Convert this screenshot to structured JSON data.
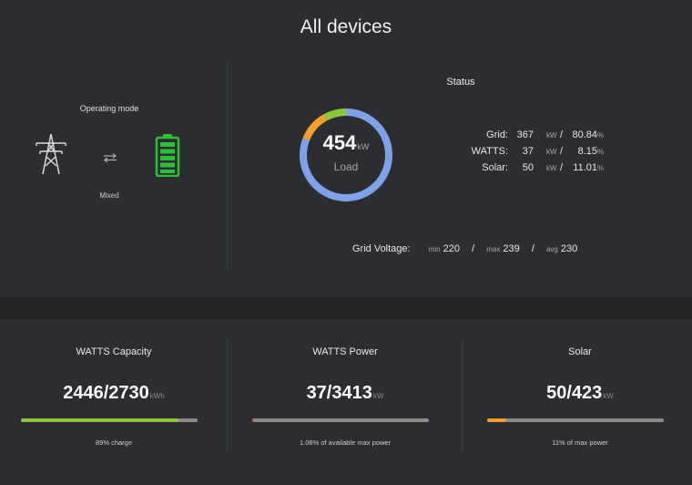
{
  "page": {
    "title": "All devices"
  },
  "operating_mode": {
    "label": "Operating mode",
    "value": "Mixed",
    "arrows_glyph": "⇆",
    "icons": [
      "power-tower-icon",
      "swap-arrows-icon",
      "battery-full-icon"
    ]
  },
  "status": {
    "title": "Status",
    "load_value": "454",
    "load_unit": "kW",
    "load_label": "Load",
    "ring_shares": {
      "grid": 80.84,
      "watts": 8.15,
      "solar": 11.01
    },
    "rows": [
      {
        "name": "Grid:",
        "value": "367",
        "unit": "kW",
        "slash": "/",
        "percent": "80.84",
        "percent_sym": "%"
      },
      {
        "name": "WATTS:",
        "value": "37",
        "unit": "kW",
        "slash": "/",
        "percent": "8.15",
        "percent_sym": "%"
      },
      {
        "name": "Solar:",
        "value": "50",
        "unit": "kW",
        "slash": "/",
        "percent": "11.01",
        "percent_sym": "%"
      }
    ],
    "grid_voltage": {
      "label": "Grid Voltage:",
      "min_label": "min",
      "min": "220",
      "max_label": "max",
      "max": "239",
      "avg_label": "avg",
      "avg": "230",
      "sep": "/"
    }
  },
  "cards": [
    {
      "title": "WATTS Capacity",
      "value": "2446/2730",
      "unit": "kWh",
      "fill_percent": 89,
      "subtitle": "89% charge"
    },
    {
      "title": "WATTS Power",
      "value": "37/3413",
      "unit": "kW",
      "fill_percent": 1.08,
      "subtitle": "1.08% of available max power"
    },
    {
      "title": "Solar",
      "value": "50/423",
      "unit": "kW",
      "fill_percent": 11,
      "subtitle": "11% of max power"
    }
  ],
  "colors": {
    "grid": "#7fa2e6",
    "watts": "#8cc63f",
    "solar": "#f0a030",
    "battery": "#2fbf3a",
    "track": "#8a8a8a",
    "power_fill": "#e05a5a"
  }
}
